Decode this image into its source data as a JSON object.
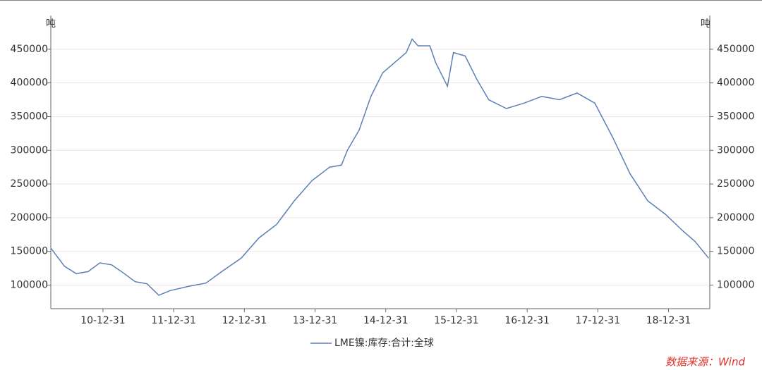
{
  "chart_data": {
    "type": "line",
    "y_unit": "吨",
    "source": "数据来源：Wind",
    "x": [
      "10-04-05",
      "10-06-15",
      "10-08-15",
      "10-10-15",
      "10-12-15",
      "11-02-15",
      "11-04-15",
      "11-06-15",
      "11-08-15",
      "11-10-15",
      "11-12-15",
      "12-03-15",
      "12-06-15",
      "12-09-15",
      "12-12-15",
      "13-03-15",
      "13-06-15",
      "13-09-15",
      "13-12-15",
      "14-03-15",
      "14-05-15",
      "14-06-15",
      "14-08-15",
      "14-10-15",
      "14-12-15",
      "15-02-15",
      "15-04-15",
      "15-05-15",
      "15-06-15",
      "15-08-15",
      "15-09-15",
      "15-11-15",
      "15-12-15",
      "16-02-15",
      "16-04-15",
      "16-06-15",
      "16-09-15",
      "16-12-15",
      "17-03-15",
      "17-06-15",
      "17-09-15",
      "17-12-15",
      "18-03-15",
      "18-06-15",
      "18-09-15",
      "18-12-15",
      "19-03-15",
      "19-05-15",
      "19-07-25"
    ],
    "series": [
      {
        "name": "LME镍:库存:合计:全球",
        "color": "#5b7fb5",
        "values": [
          155000,
          128000,
          117000,
          120000,
          133000,
          130000,
          118000,
          105000,
          102000,
          85000,
          92000,
          98000,
          103000,
          122000,
          140000,
          170000,
          190000,
          225000,
          255000,
          275000,
          278000,
          300000,
          330000,
          380000,
          415000,
          430000,
          445000,
          465000,
          455000,
          455000,
          430000,
          395000,
          445000,
          440000,
          405000,
          375000,
          362000,
          370000,
          380000,
          375000,
          385000,
          370000,
          320000,
          265000,
          225000,
          205000,
          180000,
          165000,
          140000
        ]
      }
    ],
    "xlim": [
      "10-04-05",
      "19-07-31"
    ],
    "xticks": [
      "10-12-31",
      "11-12-31",
      "12-12-31",
      "13-12-31",
      "14-12-31",
      "15-12-31",
      "16-12-31",
      "17-12-31",
      "18-12-31"
    ],
    "ylim": [
      65000,
      500000
    ],
    "yticks": [
      100000,
      150000,
      200000,
      250000,
      300000,
      350000,
      400000,
      450000
    ],
    "grid": true
  }
}
